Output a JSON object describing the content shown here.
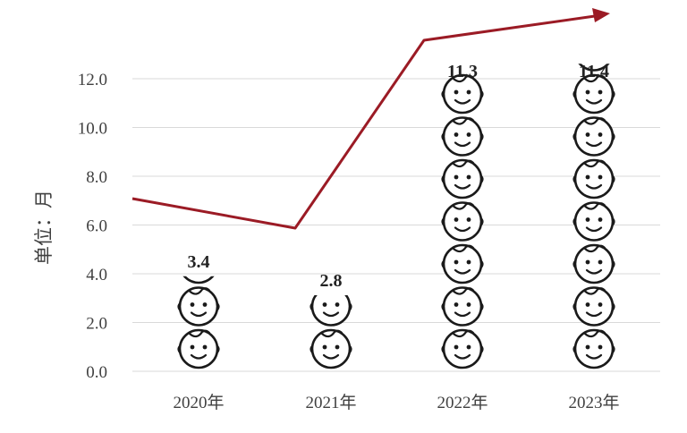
{
  "chart_data": {
    "type": "bar",
    "title": "",
    "xlabel": "",
    "ylabel": "单位：月",
    "ylim": [
      0,
      12
    ],
    "y_ticks": [
      "0.0",
      "2.0",
      "4.0",
      "6.0",
      "8.0",
      "10.0",
      "12.0"
    ],
    "grid": true,
    "categories": [
      "2020年",
      "2021年",
      "2022年",
      "2023年"
    ],
    "series": [
      {
        "values": [
          3.4,
          2.8,
          11.3,
          11.4
        ],
        "labels": [
          "3.4",
          "2.8",
          "11.3",
          "11.4"
        ]
      }
    ],
    "pictogram_icon": "baby-face-icon",
    "unit_per_icon": 1.6,
    "trend_arrow": {
      "color": "#9b1b25"
    },
    "colors": {
      "grid": "#d9d9d9",
      "icon_stroke": "#1a1a1a",
      "text": "#404040"
    }
  }
}
